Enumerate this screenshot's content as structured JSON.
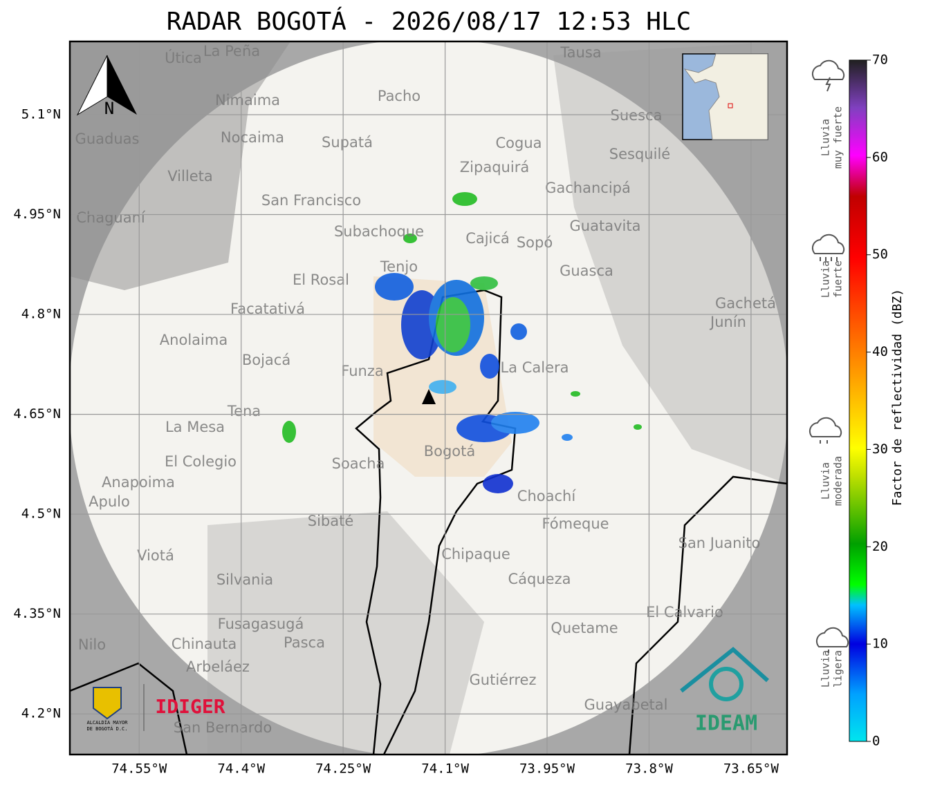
{
  "title": "RADAR BOGOTÁ - 2026/08/17 12:53 HLC",
  "map": {
    "xlim": [
      -74.652,
      -73.597
    ],
    "ylim": [
      4.139,
      5.21
    ],
    "xticks": [
      {
        "value": -74.55,
        "label": "74.55°W"
      },
      {
        "value": -74.4,
        "label": "74.4°W"
      },
      {
        "value": -74.25,
        "label": "74.25°W"
      },
      {
        "value": -74.1,
        "label": "74.1°W"
      },
      {
        "value": -73.95,
        "label": "73.95°W"
      },
      {
        "value": -73.8,
        "label": "73.8°W"
      },
      {
        "value": -73.65,
        "label": "73.65°W"
      }
    ],
    "yticks": [
      {
        "value": 5.1,
        "label": "5.1°N"
      },
      {
        "value": 4.95,
        "label": "4.95°N"
      },
      {
        "value": 4.8,
        "label": "4.8°N"
      },
      {
        "value": 4.65,
        "label": "4.65°N"
      },
      {
        "value": 4.5,
        "label": "4.5°N"
      },
      {
        "value": 4.35,
        "label": "4.35°N"
      },
      {
        "value": 4.2,
        "label": "4.2°N"
      }
    ],
    "grid": true,
    "north": "N",
    "places": [
      "La Peña",
      "Útica",
      "Tausa",
      "Pacho",
      "Nimaima",
      "Suesca",
      "Guaduas",
      "Nocaima",
      "Supatá",
      "Cogua",
      "Sesquilé",
      "Zipaquirá",
      "Villeta",
      "Gachancipá",
      "San Francisco",
      "Chaguaní",
      "Guatavita",
      "Subachoque",
      "Cajicá",
      "Sopó",
      "Guasca",
      "Tenjo",
      "El Rosal",
      "Gachetá",
      "Junín",
      "Facatativá",
      "Anolaima",
      "Bojacá",
      "Funza",
      "La Calera",
      "Tena",
      "La Mesa",
      "Bogotá",
      "Soacha",
      "El Colegio",
      "Anapoima",
      "Apulo",
      "Choachí",
      "Sibaté",
      "Fómeque",
      "San Juanito",
      "Viotá",
      "Chipaque",
      "Silvania",
      "Cáqueza",
      "El Calvario",
      "Fusagasugá",
      "Quetame",
      "Pasca",
      "Chinauta",
      "Nilo",
      "Arbeláez",
      "Gutiérrez",
      "Guayabetal",
      "San Bernardo"
    ]
  },
  "colorbar": {
    "label": "Factor de reflectividad (dBZ)",
    "lim": [
      0,
      70
    ],
    "ticks": [
      0,
      10,
      20,
      30,
      40,
      50,
      60,
      70
    ]
  },
  "rain_levels": [
    [
      "Lluvia",
      "muy fuerte"
    ],
    [
      "Lluvia",
      "fuerte"
    ],
    [
      "Lluvia",
      "moderada"
    ],
    [
      "Lluvia",
      "ligera"
    ]
  ],
  "logos": {
    "idiger": "IDIGER",
    "alcaldia": [
      "ALCALDÍA MAYOR",
      "DE BOGOTÁ D.C."
    ],
    "ideam": "IDEAM"
  }
}
